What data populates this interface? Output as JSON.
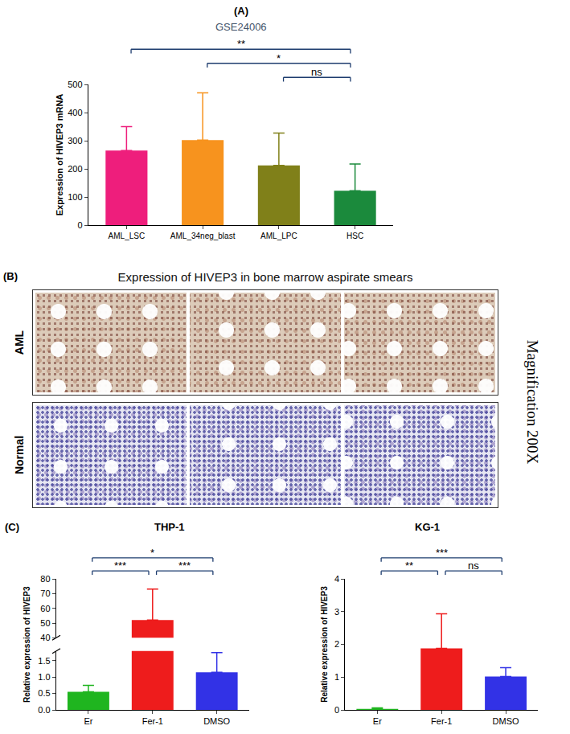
{
  "chart_data": [
    {
      "type": "bar",
      "panel": "(A)",
      "title": "GSE24006",
      "y_label": "Expression of HIVEP3 mRNA",
      "categories": [
        "AML_LSC",
        "AML_34neg_blast",
        "AML_LPC",
        "HSC"
      ],
      "values": [
        265,
        302,
        212,
        122
      ],
      "errors": [
        85,
        168,
        115,
        95
      ],
      "colors": [
        "#ee1e7c",
        "#f7931e",
        "#808019",
        "#1b8a3c"
      ],
      "ylim": [
        0,
        500
      ],
      "yticks": [
        0,
        100,
        200,
        300,
        400,
        500
      ],
      "significance": [
        {
          "groups": [
            "AML_LSC",
            "HSC"
          ],
          "label": "**"
        },
        {
          "groups": [
            "AML_34neg_blast",
            "HSC"
          ],
          "label": "*"
        },
        {
          "groups": [
            "AML_LPC",
            "HSC"
          ],
          "label": "ns"
        }
      ]
    },
    {
      "type": "bar",
      "panel": "(C)",
      "title": "THP-1",
      "y_label": "Relative expression of HIVEP3",
      "categories": [
        "Er",
        "Fer-1",
        "DMSO"
      ],
      "values": [
        0.55,
        52,
        1.15
      ],
      "errors": [
        0.2,
        21,
        0.6
      ],
      "colors": [
        "#1fb51f",
        "#ee1c1c",
        "#3232e6"
      ],
      "y_segments": [
        {
          "ylim": [
            0,
            1.8
          ],
          "yticks": [
            {
              "value": 0,
              "label": "0.0"
            },
            0.5,
            {
              "value": 1,
              "label": "1.0"
            },
            1.5
          ]
        },
        {
          "ylim": [
            40,
            80
          ],
          "yticks": [
            40,
            50,
            60,
            70,
            80
          ]
        }
      ],
      "significance": [
        {
          "groups": [
            "Er",
            "Fer-1"
          ],
          "label": "***"
        },
        {
          "groups": [
            "Er",
            "DMSO"
          ],
          "label": "*"
        },
        {
          "groups": [
            "Fer-1",
            "DMSO"
          ],
          "label": "***"
        }
      ]
    },
    {
      "type": "bar",
      "title": "KG-1",
      "y_label": "Relative expression of HIVEP3",
      "categories": [
        "Er",
        "Fer-1",
        "DMSO"
      ],
      "values": [
        0.03,
        1.88,
        1.02
      ],
      "errors": [
        0.03,
        1.05,
        0.27
      ],
      "colors": [
        "#1fb51f",
        "#ee1c1c",
        "#3232e6"
      ],
      "ylim": [
        0,
        4
      ],
      "yticks": [
        0,
        1,
        2,
        3,
        4
      ],
      "significance": [
        {
          "groups": [
            "Er",
            "Fer-1"
          ],
          "label": "**"
        },
        {
          "groups": [
            "Er",
            "DMSO"
          ],
          "label": "***"
        },
        {
          "groups": [
            "Fer-1",
            "DMSO"
          ],
          "label": "ns"
        }
      ]
    }
  ],
  "micrograph_panel": {
    "panel": "(B)",
    "title": "Expression of HIVEP3 in bone marrow aspirate smears",
    "rows": [
      "AML",
      "Normal"
    ],
    "images_per_row": 3,
    "side_label": "Magnification 200X"
  }
}
